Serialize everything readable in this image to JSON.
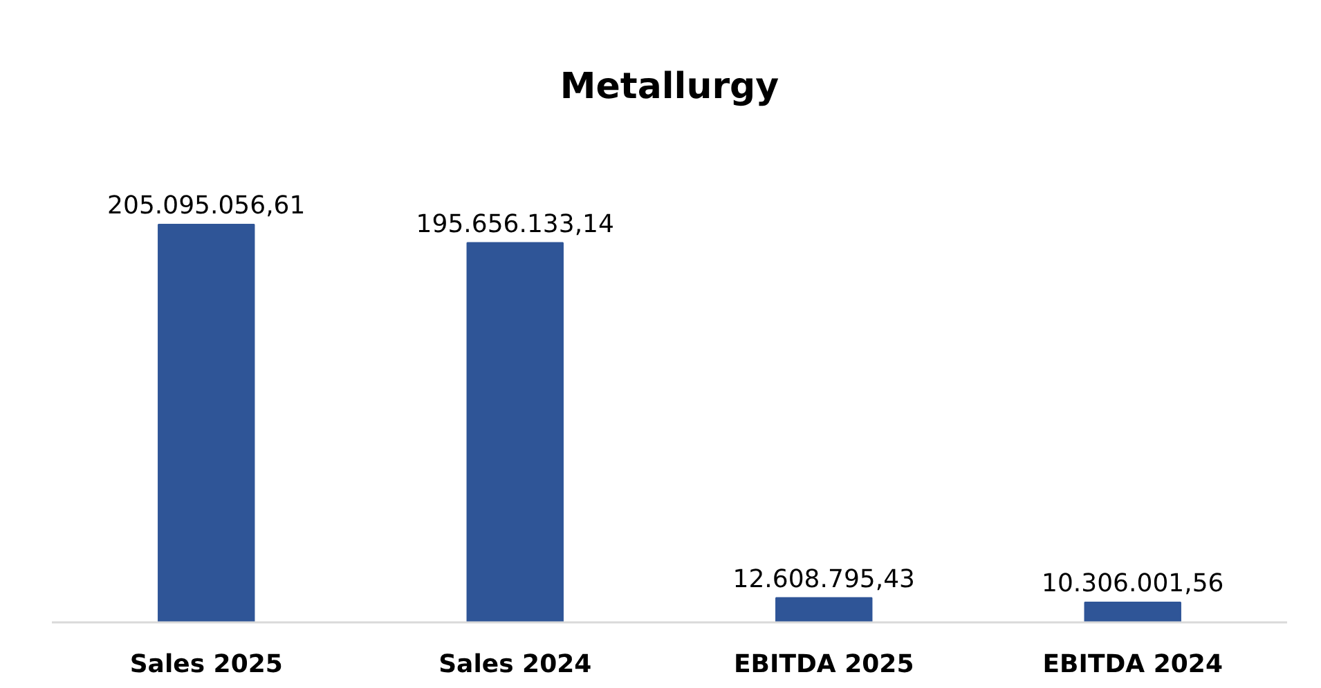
{
  "chart_data": {
    "type": "bar",
    "title": "Metallurgy",
    "categories": [
      "Sales 2025",
      "Sales 2024",
      "EBITDA 2025",
      "EBITDA 2024"
    ],
    "values": [
      205095056.61,
      195656133.14,
      12608795.43,
      10306001.56
    ],
    "value_labels": [
      "205.095.056,61",
      "195.656.133,14",
      "12.608.795,43",
      "10.306.001,56"
    ],
    "color": "#2f5597",
    "grid": false
  }
}
